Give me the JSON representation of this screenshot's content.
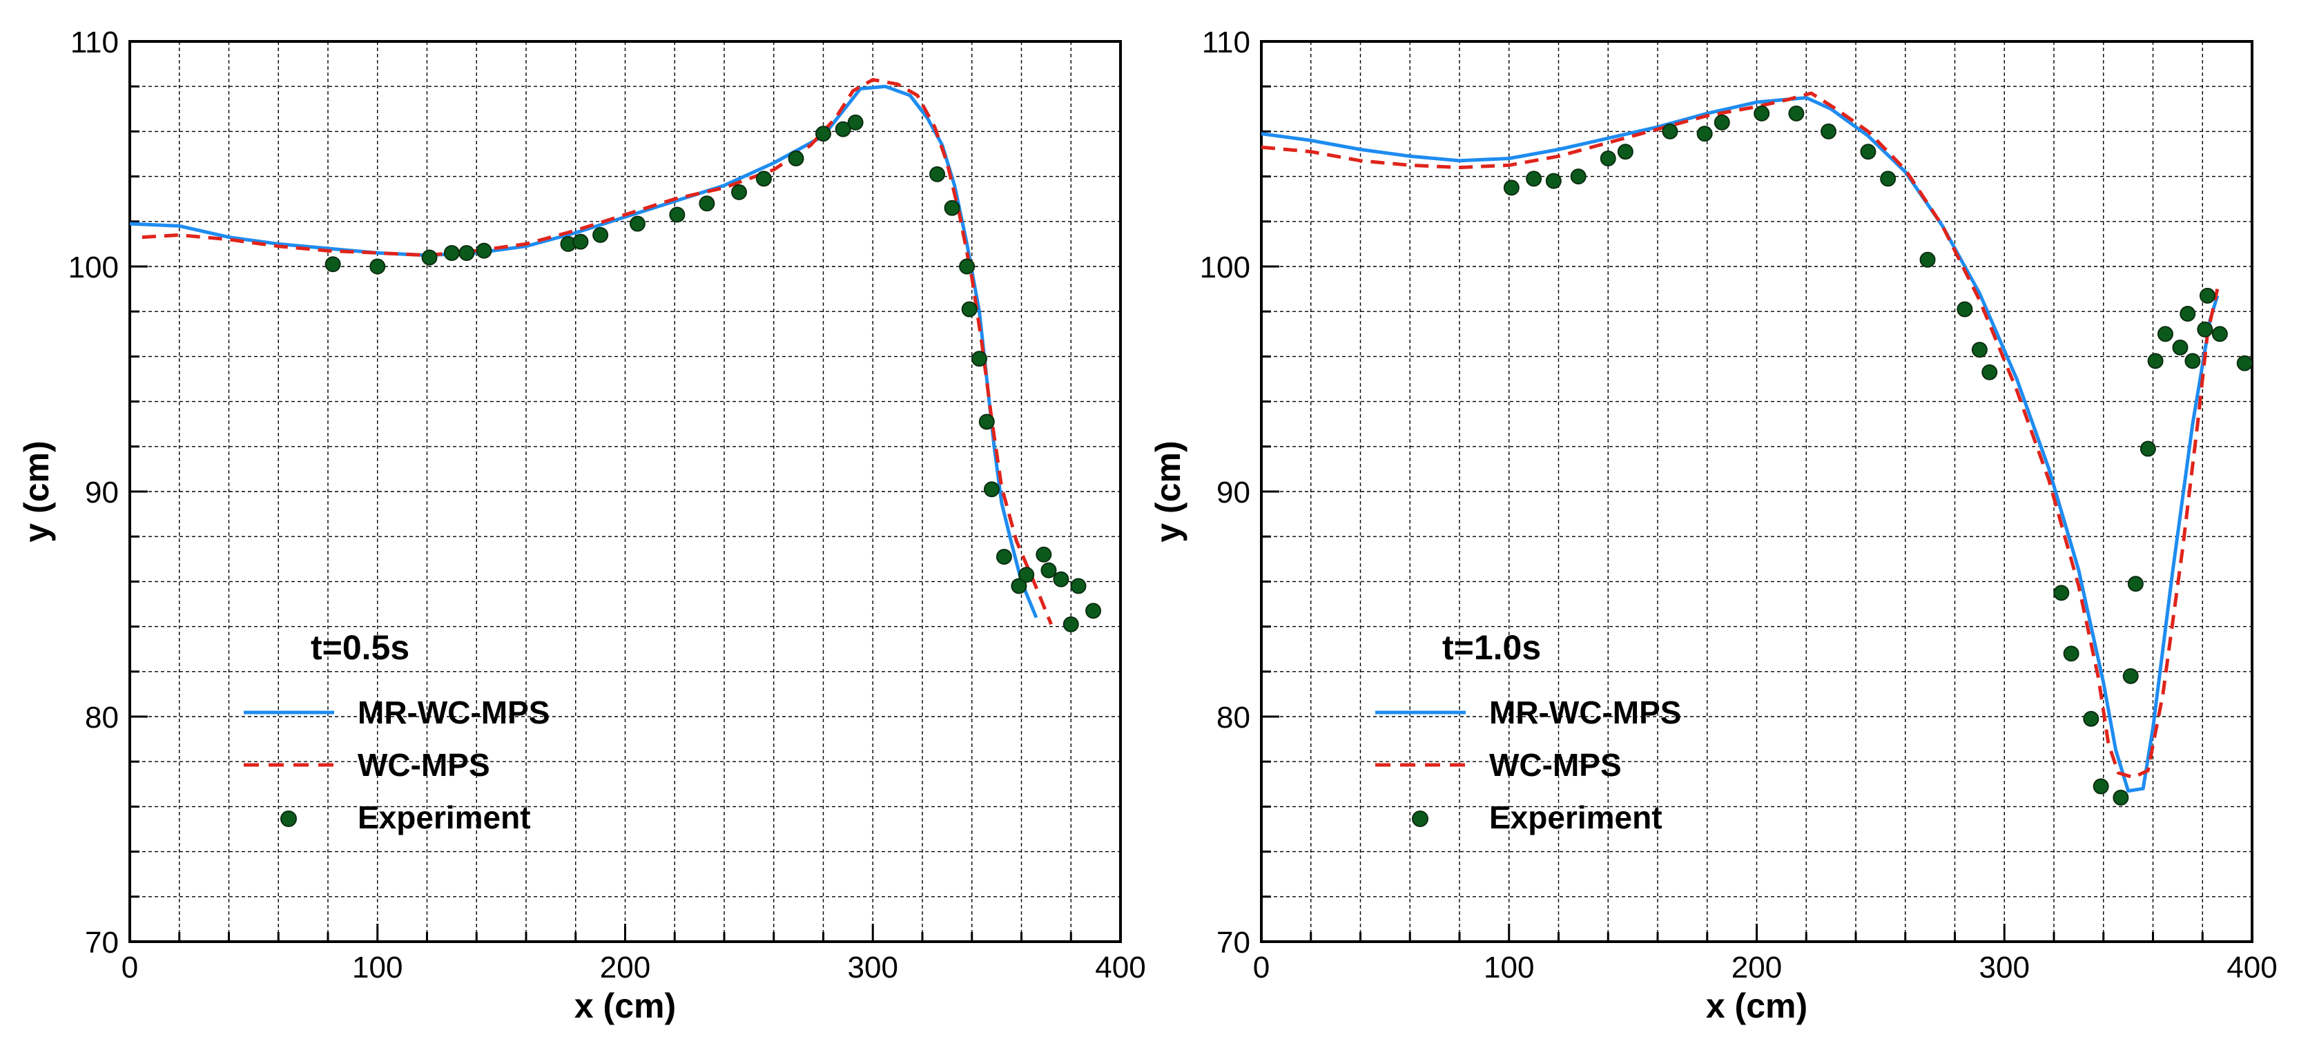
{
  "chart_data": [
    {
      "type": "line",
      "annotation": "t=0.5s",
      "xlabel": "x (cm)",
      "ylabel": "y (cm)",
      "xlim": [
        0,
        400
      ],
      "ylim": [
        70,
        110
      ],
      "x_ticks": [
        0,
        100,
        200,
        300,
        400
      ],
      "y_ticks": [
        70,
        80,
        90,
        100,
        110
      ],
      "grid": true,
      "legend_position": "bottom-left",
      "series": [
        {
          "name": "MR-WC-MPS",
          "style": "solid",
          "color": "#1e8cf0",
          "points": [
            [
              0,
              101.9
            ],
            [
              20,
              101.8
            ],
            [
              40,
              101.3
            ],
            [
              60,
              101.0
            ],
            [
              80,
              100.8
            ],
            [
              100,
              100.6
            ],
            [
              120,
              100.5
            ],
            [
              140,
              100.6
            ],
            [
              160,
              100.9
            ],
            [
              180,
              101.5
            ],
            [
              200,
              102.2
            ],
            [
              220,
              102.9
            ],
            [
              240,
              103.6
            ],
            [
              260,
              104.6
            ],
            [
              280,
              105.8
            ],
            [
              290,
              107.2
            ],
            [
              295,
              107.9
            ],
            [
              305,
              108.0
            ],
            [
              315,
              107.6
            ],
            [
              322,
              106.6
            ],
            [
              328,
              105.4
            ],
            [
              333,
              103.6
            ],
            [
              338,
              101.0
            ],
            [
              343,
              98.0
            ],
            [
              346,
              95.0
            ],
            [
              349,
              92.0
            ],
            [
              352,
              89.5
            ],
            [
              356,
              87.7
            ],
            [
              360,
              86.0
            ],
            [
              366,
              84.4
            ]
          ]
        },
        {
          "name": "WC-MPS",
          "style": "dashed",
          "color": "#e0241b",
          "points": [
            [
              5,
              101.3
            ],
            [
              20,
              101.4
            ],
            [
              40,
              101.2
            ],
            [
              60,
              100.9
            ],
            [
              80,
              100.7
            ],
            [
              100,
              100.6
            ],
            [
              120,
              100.5
            ],
            [
              140,
              100.7
            ],
            [
              160,
              101.0
            ],
            [
              180,
              101.6
            ],
            [
              200,
              102.3
            ],
            [
              220,
              103.0
            ],
            [
              240,
              103.5
            ],
            [
              260,
              104.3
            ],
            [
              275,
              105.4
            ],
            [
              285,
              106.6
            ],
            [
              292,
              107.8
            ],
            [
              300,
              108.3
            ],
            [
              310,
              108.1
            ],
            [
              318,
              107.6
            ],
            [
              325,
              106.2
            ],
            [
              330,
              104.6
            ],
            [
              335,
              102.3
            ],
            [
              340,
              99.5
            ],
            [
              344,
              96.6
            ],
            [
              348,
              93.2
            ],
            [
              352,
              90.2
            ],
            [
              358,
              87.8
            ],
            [
              365,
              86.0
            ],
            [
              372,
              84.1
            ]
          ]
        },
        {
          "name": "Experiment",
          "style": "markers",
          "color": "#0b5a1c",
          "points": [
            [
              82,
              100.1
            ],
            [
              100,
              100.0
            ],
            [
              121,
              100.4
            ],
            [
              130,
              100.6
            ],
            [
              136,
              100.6
            ],
            [
              143,
              100.7
            ],
            [
              177,
              101.0
            ],
            [
              182,
              101.1
            ],
            [
              190,
              101.4
            ],
            [
              205,
              101.9
            ],
            [
              221,
              102.3
            ],
            [
              233,
              102.8
            ],
            [
              246,
              103.3
            ],
            [
              256,
              103.9
            ],
            [
              269,
              104.8
            ],
            [
              280,
              105.9
            ],
            [
              288,
              106.1
            ],
            [
              293,
              106.4
            ],
            [
              326,
              104.1
            ],
            [
              332,
              102.6
            ],
            [
              338,
              100.0
            ],
            [
              339,
              98.1
            ],
            [
              343,
              95.9
            ],
            [
              346,
              93.1
            ],
            [
              348,
              90.1
            ],
            [
              353,
              87.1
            ],
            [
              359,
              85.8
            ],
            [
              362,
              86.3
            ],
            [
              369,
              87.2
            ],
            [
              371,
              86.5
            ],
            [
              376,
              86.1
            ],
            [
              380,
              84.1
            ],
            [
              383,
              85.8
            ],
            [
              389,
              84.7
            ]
          ]
        }
      ]
    },
    {
      "type": "line",
      "annotation": "t=1.0s",
      "xlabel": "x (cm)",
      "ylabel": "y (cm)",
      "xlim": [
        0,
        400
      ],
      "ylim": [
        70,
        110
      ],
      "x_ticks": [
        0,
        100,
        200,
        300,
        400
      ],
      "y_ticks": [
        70,
        80,
        90,
        100,
        110
      ],
      "grid": true,
      "legend_position": "bottom-left",
      "series": [
        {
          "name": "MR-WC-MPS",
          "style": "solid",
          "color": "#1e8cf0",
          "points": [
            [
              0,
              105.9
            ],
            [
              20,
              105.6
            ],
            [
              40,
              105.2
            ],
            [
              60,
              104.9
            ],
            [
              80,
              104.7
            ],
            [
              100,
              104.8
            ],
            [
              120,
              105.2
            ],
            [
              140,
              105.7
            ],
            [
              160,
              106.2
            ],
            [
              180,
              106.8
            ],
            [
              200,
              107.3
            ],
            [
              220,
              107.5
            ],
            [
              230,
              107.0
            ],
            [
              245,
              105.8
            ],
            [
              260,
              104.2
            ],
            [
              275,
              101.8
            ],
            [
              290,
              98.8
            ],
            [
              305,
              95.0
            ],
            [
              318,
              91.0
            ],
            [
              330,
              86.5
            ],
            [
              340,
              81.5
            ],
            [
              345,
              78.5
            ],
            [
              350,
              76.7
            ],
            [
              356,
              76.8
            ],
            [
              360,
              79.5
            ],
            [
              368,
              86.5
            ],
            [
              376,
              93.0
            ],
            [
              383,
              97.6
            ],
            [
              386,
              98.7
            ]
          ]
        },
        {
          "name": "WC-MPS",
          "style": "dashed",
          "color": "#e0241b",
          "points": [
            [
              0,
              105.3
            ],
            [
              20,
              105.1
            ],
            [
              40,
              104.7
            ],
            [
              60,
              104.5
            ],
            [
              80,
              104.4
            ],
            [
              100,
              104.5
            ],
            [
              120,
              104.9
            ],
            [
              140,
              105.5
            ],
            [
              160,
              106.1
            ],
            [
              180,
              106.7
            ],
            [
              200,
              107.1
            ],
            [
              212,
              107.4
            ],
            [
              222,
              107.7
            ],
            [
              232,
              107.0
            ],
            [
              245,
              106.0
            ],
            [
              260,
              104.3
            ],
            [
              275,
              101.8
            ],
            [
              290,
              98.5
            ],
            [
              305,
              94.5
            ],
            [
              318,
              90.5
            ],
            [
              330,
              85.8
            ],
            [
              338,
              81.7
            ],
            [
              342,
              78.8
            ],
            [
              346,
              77.5
            ],
            [
              352,
              77.3
            ],
            [
              358,
              77.6
            ],
            [
              364,
              81.0
            ],
            [
              372,
              87.5
            ],
            [
              378,
              93.0
            ],
            [
              382,
              97.0
            ],
            [
              386,
              99.0
            ]
          ]
        },
        {
          "name": "Experiment",
          "style": "markers",
          "color": "#0b5a1c",
          "points": [
            [
              101,
              103.5
            ],
            [
              110,
              103.9
            ],
            [
              118,
              103.8
            ],
            [
              128,
              104.0
            ],
            [
              140,
              104.8
            ],
            [
              147,
              105.1
            ],
            [
              165,
              106.0
            ],
            [
              179,
              105.9
            ],
            [
              186,
              106.4
            ],
            [
              202,
              106.8
            ],
            [
              216,
              106.8
            ],
            [
              229,
              106.0
            ],
            [
              245,
              105.1
            ],
            [
              253,
              103.9
            ],
            [
              269,
              100.3
            ],
            [
              284,
              98.1
            ],
            [
              290,
              96.3
            ],
            [
              294,
              95.3
            ],
            [
              323,
              85.5
            ],
            [
              327,
              82.8
            ],
            [
              335,
              79.9
            ],
            [
              339,
              76.9
            ],
            [
              347,
              76.4
            ],
            [
              351,
              81.8
            ],
            [
              353,
              85.9
            ],
            [
              358,
              91.9
            ],
            [
              361,
              95.8
            ],
            [
              365,
              97.0
            ],
            [
              371,
              96.4
            ],
            [
              374,
              97.9
            ],
            [
              376,
              95.8
            ],
            [
              381,
              97.2
            ],
            [
              382,
              98.7
            ],
            [
              387,
              97.0
            ],
            [
              397,
              95.7
            ]
          ]
        }
      ]
    }
  ]
}
